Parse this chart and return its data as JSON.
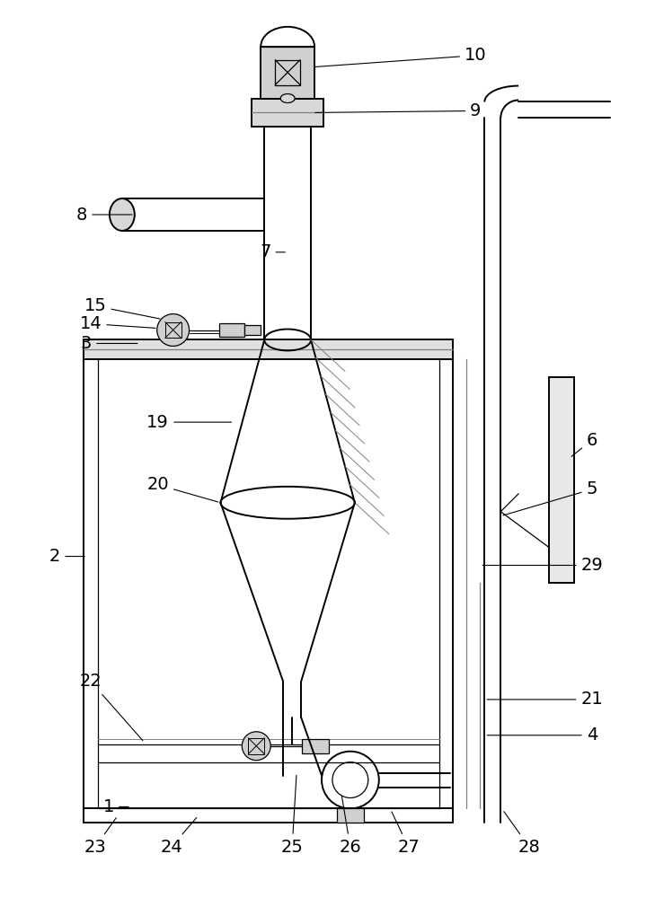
{
  "bg_color": "#ffffff",
  "lc": "#000000",
  "lc_gray": "#808080",
  "lc_light": "#aaaaaa",
  "lw_main": 1.4,
  "lw_thin": 0.9,
  "lw_vt": 0.7,
  "label_fontsize": 14,
  "fig_width": 7.19,
  "fig_height": 10.0
}
